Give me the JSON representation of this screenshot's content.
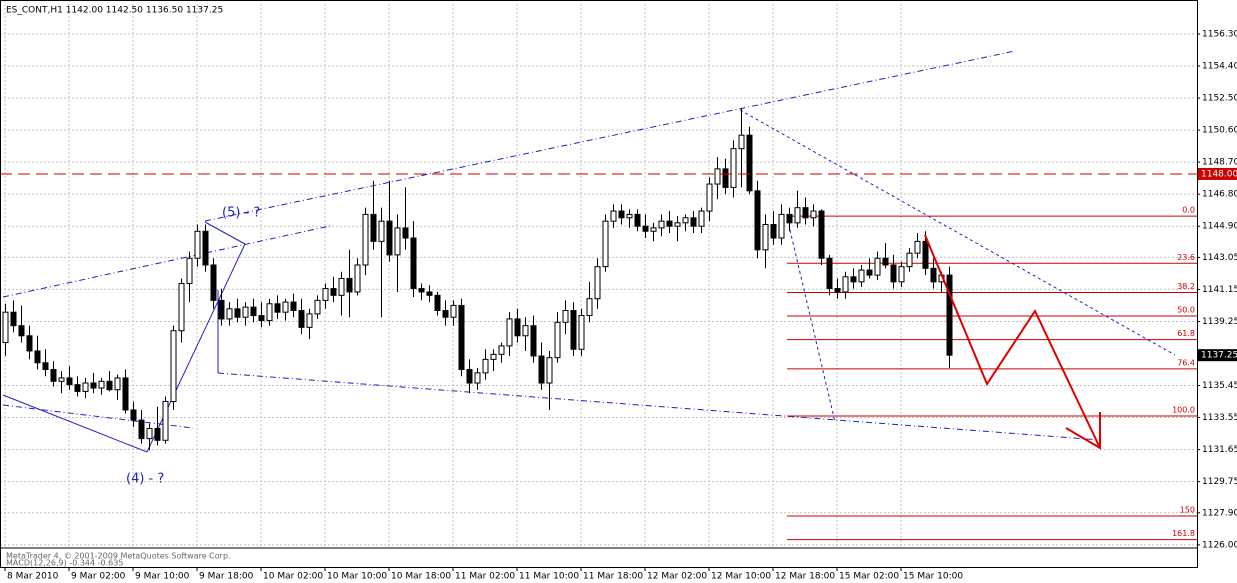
{
  "chart_data": {
    "type": "candlestick",
    "title": "ES_CONT,H1  1142.00 1142.50 1136.50 1137.25",
    "ylim": [
      1125.93,
      1158.2
    ],
    "yticks": [
      {
        "value": 1156.3,
        "label": "1156.30"
      },
      {
        "value": 1154.4,
        "label": "1154.40"
      },
      {
        "value": 1152.5,
        "label": "1152.50"
      },
      {
        "value": 1150.6,
        "label": "1150.60"
      },
      {
        "value": 1148.7,
        "label": "1148.70"
      },
      {
        "value": 1146.8,
        "label": "1146.80"
      },
      {
        "value": 1144.9,
        "label": "1144.90"
      },
      1143.05,
      1141.15,
      1139.25,
      1135.45,
      1133.55,
      1131.65,
      1129.75,
      {
        "value": 1127.9,
        "label": "1127.90"
      },
      {
        "value": 1126,
        "label": "1126.00"
      }
    ],
    "grid": true,
    "categories": [
      "8 Mar 2010",
      null,
      null,
      null,
      null,
      null,
      null,
      null,
      "9 Mar 02:00",
      null,
      null,
      null,
      null,
      null,
      null,
      null,
      "9 Mar 10:00",
      null,
      null,
      null,
      null,
      null,
      null,
      null,
      "9 Mar 18:00",
      null,
      null,
      null,
      null,
      null,
      null,
      null,
      "10 Mar 02:00",
      null,
      null,
      null,
      null,
      null,
      null,
      null,
      "10 Mar 10:00",
      null,
      null,
      null,
      null,
      null,
      null,
      null,
      "10 Mar 18:00",
      null,
      null,
      null,
      null,
      null,
      null,
      null,
      "11 Mar 02:00",
      null,
      null,
      null,
      null,
      null,
      null,
      null,
      "11 Mar 10:00",
      null,
      null,
      null,
      null,
      null,
      null,
      null,
      "11 Mar 18:00",
      null,
      null,
      null,
      null,
      null,
      null,
      null,
      "12 Mar 02:00",
      null,
      null,
      null,
      null,
      null,
      null,
      null,
      "12 Mar 10:00",
      null,
      null,
      null,
      null,
      null,
      null,
      null,
      "12 Mar 18:00",
      null,
      null,
      null,
      null,
      null,
      null,
      null,
      "15 Mar 02:00",
      null,
      null,
      null,
      null,
      null,
      null,
      null,
      "15 Mar 10:00",
      null,
      null,
      null,
      null,
      null,
      null
    ],
    "ohlc": [
      [
        1138.0,
        1140.3,
        1137.2,
        1139.8
      ],
      [
        1139.8,
        1140.5,
        1138.6,
        1139.0
      ],
      [
        1139.0,
        1140.2,
        1138.0,
        1138.4
      ],
      [
        1138.4,
        1139.0,
        1137.0,
        1137.5
      ],
      [
        1137.5,
        1138.4,
        1136.4,
        1136.8
      ],
      [
        1136.8,
        1137.6,
        1136.0,
        1136.4
      ],
      [
        1136.4,
        1136.9,
        1135.4,
        1135.7
      ],
      [
        1135.7,
        1136.3,
        1135.0,
        1135.9
      ],
      [
        1135.9,
        1136.6,
        1135.2,
        1135.5
      ],
      [
        1135.5,
        1136.0,
        1134.8,
        1135.1
      ],
      [
        1135.1,
        1135.9,
        1134.7,
        1135.6
      ],
      [
        1135.6,
        1136.2,
        1135.0,
        1135.3
      ],
      [
        1135.3,
        1135.9,
        1134.9,
        1135.7
      ],
      [
        1135.7,
        1136.3,
        1135.1,
        1135.2
      ],
      [
        1135.2,
        1136.1,
        1134.6,
        1135.9
      ],
      [
        1135.9,
        1136.4,
        1133.8,
        1134.0
      ],
      [
        1134.0,
        1134.5,
        1133.0,
        1133.4
      ],
      [
        1133.4,
        1134.0,
        1132.0,
        1132.3
      ],
      [
        1132.3,
        1133.2,
        1131.6,
        1132.9
      ],
      [
        1132.9,
        1134.2,
        1131.9,
        1132.2
      ],
      [
        1132.2,
        1134.8,
        1132.0,
        1134.5
      ],
      [
        1134.5,
        1139.0,
        1134.0,
        1138.7
      ],
      [
        1138.7,
        1141.8,
        1138.0,
        1141.5
      ],
      [
        1141.5,
        1143.4,
        1140.4,
        1143.0
      ],
      [
        1143.0,
        1145.0,
        1142.5,
        1144.6
      ],
      [
        1144.6,
        1145.0,
        1142.2,
        1142.6
      ],
      [
        1142.6,
        1143.0,
        1140.0,
        1140.5
      ],
      [
        1140.5,
        1141.2,
        1139.0,
        1139.4
      ],
      [
        1139.4,
        1140.4,
        1139.0,
        1140.0
      ],
      [
        1140.0,
        1140.6,
        1139.2,
        1139.5
      ],
      [
        1139.5,
        1140.4,
        1139.0,
        1140.1
      ],
      [
        1140.1,
        1140.6,
        1139.2,
        1139.6
      ],
      [
        1139.6,
        1140.4,
        1138.9,
        1139.3
      ],
      [
        1139.3,
        1140.6,
        1139.0,
        1140.3
      ],
      [
        1140.3,
        1140.8,
        1139.4,
        1139.8
      ],
      [
        1139.8,
        1140.6,
        1139.3,
        1140.4
      ],
      [
        1140.4,
        1140.9,
        1139.5,
        1139.9
      ],
      [
        1139.9,
        1140.6,
        1138.5,
        1138.9
      ],
      [
        1138.9,
        1140.0,
        1138.2,
        1139.7
      ],
      [
        1139.7,
        1140.8,
        1139.4,
        1140.5
      ],
      [
        1140.5,
        1141.5,
        1140.0,
        1141.2
      ],
      [
        1141.2,
        1141.9,
        1140.4,
        1140.8
      ],
      [
        1140.8,
        1142.2,
        1139.6,
        1141.8
      ],
      [
        1141.8,
        1143.5,
        1139.5,
        1141.0
      ],
      [
        1141.0,
        1143.0,
        1140.8,
        1142.6
      ],
      [
        1142.6,
        1146.0,
        1142.0,
        1145.6
      ],
      [
        1145.6,
        1147.6,
        1143.5,
        1144.0
      ],
      [
        1144.0,
        1146.0,
        1139.5,
        1145.2
      ],
      [
        1145.2,
        1147.6,
        1142.8,
        1143.2
      ],
      [
        1143.2,
        1145.6,
        1141.0,
        1144.8
      ],
      [
        1144.8,
        1147.2,
        1143.5,
        1144.2
      ],
      [
        1144.2,
        1145.2,
        1140.7,
        1141.2
      ],
      [
        1141.2,
        1141.5,
        1140.5,
        1141.0
      ],
      [
        1141.0,
        1141.4,
        1140.4,
        1140.8
      ],
      [
        1140.8,
        1141.0,
        1139.6,
        1139.9
      ],
      [
        1139.9,
        1140.5,
        1139.0,
        1139.5
      ],
      [
        1139.5,
        1140.5,
        1139.0,
        1140.2
      ],
      [
        1140.2,
        1140.6,
        1136.0,
        1136.4
      ],
      [
        1136.4,
        1137.0,
        1135.0,
        1135.6
      ],
      [
        1135.6,
        1136.5,
        1135.2,
        1136.2
      ],
      [
        1136.2,
        1137.6,
        1135.8,
        1137.0
      ],
      [
        1137.0,
        1137.6,
        1136.3,
        1137.3
      ],
      [
        1137.3,
        1138.0,
        1136.8,
        1137.8
      ],
      [
        1137.8,
        1139.8,
        1137.2,
        1139.4
      ],
      [
        1139.4,
        1140.0,
        1138.0,
        1138.4
      ],
      [
        1138.4,
        1139.5,
        1137.5,
        1139.0
      ],
      [
        1139.0,
        1139.6,
        1136.8,
        1137.2
      ],
      [
        1137.2,
        1138.0,
        1135.2,
        1135.6
      ],
      [
        1135.6,
        1137.5,
        1134.0,
        1137.1
      ],
      [
        1137.1,
        1139.8,
        1136.8,
        1139.2
      ],
      [
        1139.2,
        1140.5,
        1138.5,
        1139.9
      ],
      [
        1139.9,
        1140.4,
        1137.2,
        1137.6
      ],
      [
        1137.6,
        1140.0,
        1137.2,
        1139.6
      ],
      [
        1139.6,
        1141.6,
        1139.2,
        1140.6
      ],
      [
        1140.6,
        1143.0,
        1140.0,
        1142.5
      ],
      [
        1142.5,
        1145.6,
        1142.2,
        1145.2
      ],
      [
        1145.2,
        1146.2,
        1144.8,
        1145.8
      ],
      [
        1145.8,
        1146.2,
        1145.0,
        1145.4
      ],
      [
        1145.4,
        1145.9,
        1144.8,
        1145.6
      ],
      [
        1145.6,
        1145.9,
        1144.6,
        1144.9
      ],
      [
        1144.9,
        1145.6,
        1144.2,
        1144.6
      ],
      [
        1144.6,
        1145.1,
        1144.0,
        1144.8
      ],
      [
        1144.8,
        1145.6,
        1144.3,
        1145.2
      ],
      [
        1145.2,
        1145.8,
        1144.5,
        1144.9
      ],
      [
        1144.9,
        1145.5,
        1144.0,
        1145.1
      ],
      [
        1145.1,
        1145.6,
        1144.6,
        1145.4
      ],
      [
        1145.4,
        1145.8,
        1144.5,
        1144.9
      ],
      [
        1144.9,
        1146.0,
        1144.5,
        1145.8
      ],
      [
        1145.8,
        1147.8,
        1145.2,
        1147.4
      ],
      [
        1147.4,
        1149.0,
        1146.5,
        1148.3
      ],
      [
        1148.3,
        1148.9,
        1146.8,
        1147.2
      ],
      [
        1147.2,
        1150.0,
        1146.6,
        1149.5
      ],
      [
        1149.5,
        1151.9,
        1147.2,
        1150.3
      ],
      [
        1150.3,
        1150.8,
        1146.8,
        1147.0
      ],
      [
        1147.0,
        1147.6,
        1143.0,
        1143.5
      ],
      [
        1143.5,
        1145.6,
        1142.4,
        1145.0
      ],
      [
        1145.0,
        1145.8,
        1143.8,
        1144.2
      ],
      [
        1144.2,
        1146.2,
        1143.8,
        1145.6
      ],
      [
        1145.6,
        1146.0,
        1144.6,
        1145.1
      ],
      [
        1145.1,
        1147.0,
        1144.8,
        1146.0
      ],
      [
        1146.0,
        1146.6,
        1145.0,
        1145.4
      ],
      [
        1145.4,
        1146.2,
        1144.9,
        1145.8
      ],
      [
        1145.8,
        1145.9,
        1142.6,
        1143.0
      ],
      [
        1143.0,
        1143.2,
        1140.8,
        1141.2
      ],
      [
        1141.2,
        1141.8,
        1140.6,
        1141.0
      ],
      [
        1141.0,
        1142.2,
        1140.6,
        1141.9
      ],
      [
        1141.9,
        1142.4,
        1141.2,
        1141.6
      ],
      [
        1141.6,
        1142.6,
        1141.3,
        1142.3
      ],
      [
        1142.3,
        1143.0,
        1141.8,
        1142.0
      ],
      [
        1142.0,
        1143.4,
        1141.7,
        1143.0
      ],
      [
        1143.0,
        1143.9,
        1142.4,
        1142.6
      ],
      [
        1142.6,
        1143.2,
        1141.2,
        1141.6
      ],
      [
        1141.6,
        1142.8,
        1141.3,
        1142.5
      ],
      [
        1142.5,
        1143.6,
        1142.2,
        1143.3
      ],
      [
        1143.3,
        1144.5,
        1143.0,
        1144.0
      ],
      [
        1144.0,
        1144.6,
        1142.0,
        1142.4
      ],
      [
        1142.4,
        1143.0,
        1141.2,
        1141.6
      ],
      [
        1141.6,
        1142.2,
        1141.0,
        1142.0
      ],
      [
        1142.0,
        1142.5,
        1136.5,
        1137.25
      ]
    ],
    "up_color": "#ffffff",
    "down_color": "#000000",
    "hline": {
      "value": 1148,
      "label": "1148.00",
      "color": "#cc0000"
    },
    "last_price": 1137.25,
    "fibonacci": {
      "color": "#cc0000",
      "levels": [
        {
          "label": "0.0",
          "value": 1145.5
        },
        {
          "label": "23.6",
          "value": 1142.7
        },
        {
          "label": "38.2",
          "value": 1140.97
        },
        {
          "label": "50.0",
          "value": 1139.57
        },
        {
          "label": "61.8",
          "value": 1138.17
        },
        {
          "label": "76.4",
          "value": 1136.44
        },
        {
          "label": "100.0",
          "value": 1133.64
        },
        {
          "label": "150",
          "value": 1127.71
        },
        {
          "label": "161.8",
          "value": 1126.31
        }
      ]
    },
    "annotations": [
      "(5) - ?",
      "(4) - ?"
    ],
    "indicator_label": "MACD(12,26,9) -0.344 -0.635",
    "watermark": "MetaTrader 4, © 2001-2009 MetaQuotes Software Corp."
  }
}
